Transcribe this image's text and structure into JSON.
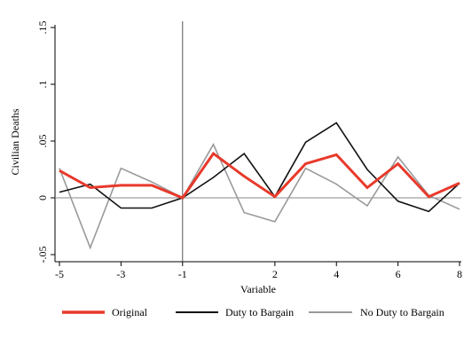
{
  "chart_data": {
    "type": "line",
    "xlabel": "Variable",
    "ylabel": "Civilian Deaths",
    "xlim": [
      -5,
      8
    ],
    "ylim": [
      -0.055,
      0.155
    ],
    "x_ticks": [
      -5,
      -3,
      -1,
      2,
      4,
      6,
      8
    ],
    "x_tick_labels": [
      "-5",
      "-3",
      "-1",
      "2",
      "4",
      "6",
      "8"
    ],
    "y_ticks": [
      -0.05,
      0,
      0.05,
      0.1,
      0.15
    ],
    "y_tick_labels": [
      "-.05",
      "0",
      ".05",
      ".1",
      ".15"
    ],
    "reference_vline_x": -1,
    "reference_hline_y": 0,
    "grid": false,
    "legend_position": "bottom",
    "x": [
      -5,
      -4,
      -3,
      -2,
      -1,
      0,
      1,
      2,
      3,
      4,
      5,
      6,
      7,
      8
    ],
    "series": [
      {
        "name": "Original",
        "color": "#e8392b",
        "values": [
          0.024,
          0.009,
          0.011,
          0.011,
          0.0,
          0.039,
          0.019,
          0.001,
          0.03,
          0.038,
          0.009,
          0.03,
          0.001,
          0.013
        ]
      },
      {
        "name": "Duty to Bargain",
        "color": "#111111",
        "values": [
          0.005,
          0.012,
          -0.009,
          -0.009,
          0.0,
          0.018,
          0.039,
          0.001,
          0.049,
          0.066,
          0.025,
          -0.003,
          -0.012,
          0.013
        ]
      },
      {
        "name": "No Duty to Bargain",
        "color": "#9a9a9a",
        "values": [
          0.026,
          -0.044,
          0.026,
          0.014,
          0.0,
          0.047,
          -0.013,
          -0.021,
          0.026,
          0.012,
          -0.007,
          0.036,
          0.002,
          -0.01
        ]
      }
    ]
  }
}
